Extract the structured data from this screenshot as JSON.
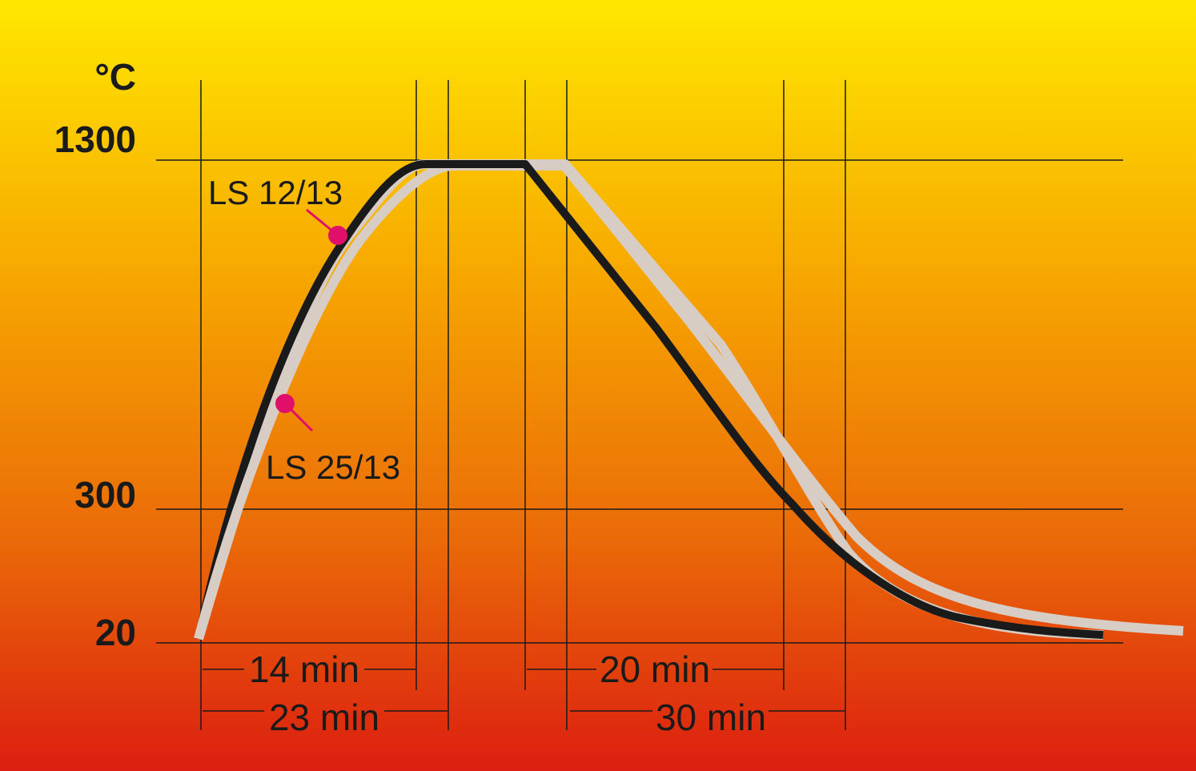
{
  "axis": {
    "unit": "°C",
    "labels": [
      "1300",
      "300",
      "20"
    ]
  },
  "curves": [
    {
      "label": "LS 12/13"
    },
    {
      "label": "LS 25/13"
    }
  ],
  "durations": [
    "14 min",
    "23 min",
    "20 min",
    "30 min"
  ]
}
